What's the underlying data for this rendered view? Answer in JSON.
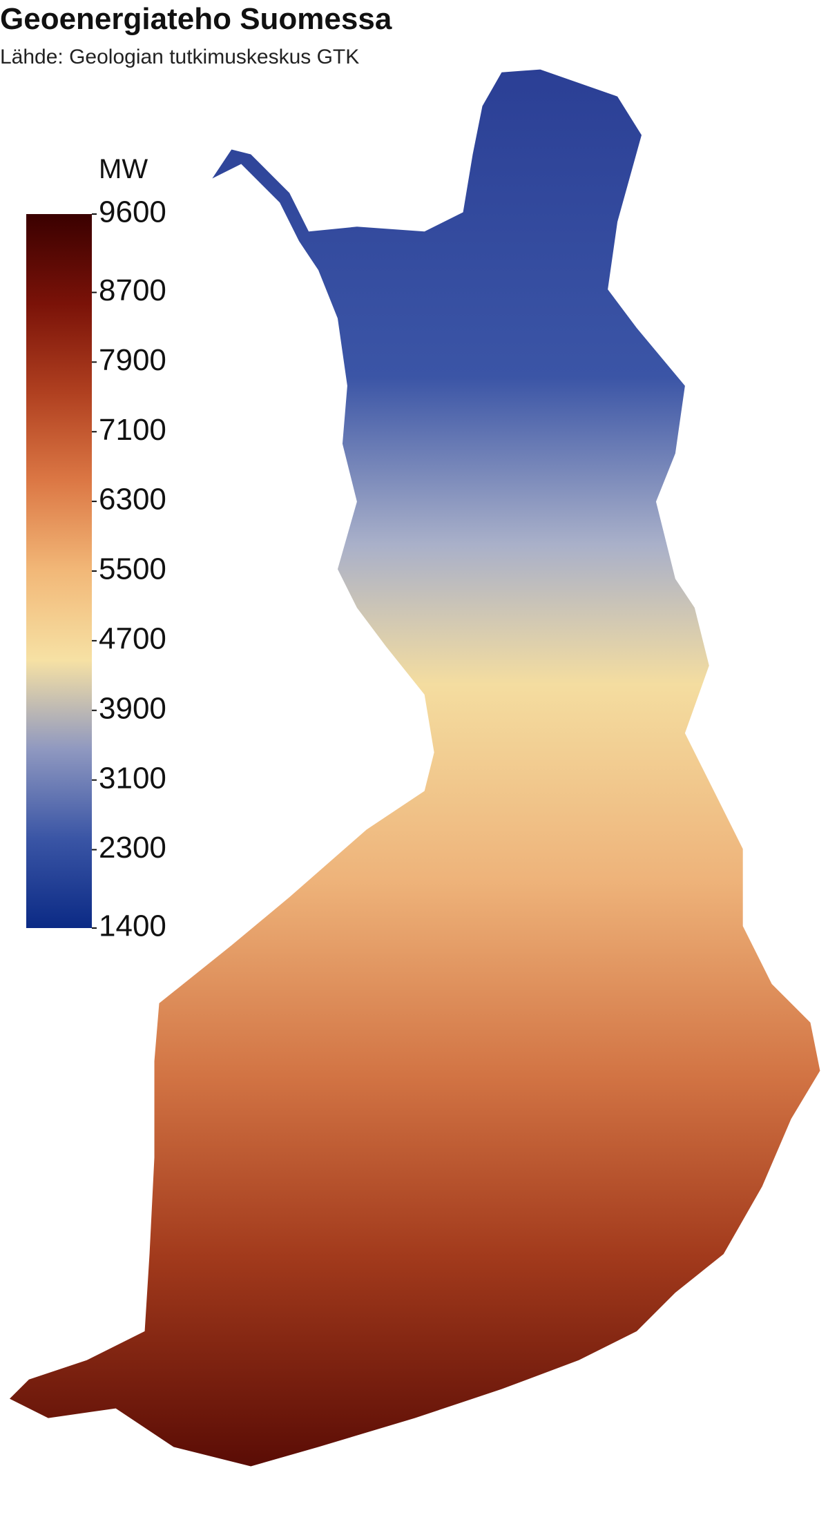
{
  "chart_data": {
    "type": "choropleth-map",
    "title": "Geoenergiateho Suomessa",
    "subtitle": "Lähde: Geologian tutkimuskeskus GTK",
    "legend": {
      "unit": "MW",
      "lim": [
        1400,
        9600
      ],
      "ticks": [
        1400,
        2300,
        3100,
        3900,
        4700,
        5500,
        6300,
        7100,
        7900,
        8700,
        9600
      ],
      "colors": [
        "#0b2a85",
        "#3a55a5",
        "#8f98c0",
        "#f6e1a4",
        "#f2b878",
        "#dc7845",
        "#b04020",
        "#7a1208",
        "#3a0000"
      ]
    }
  }
}
